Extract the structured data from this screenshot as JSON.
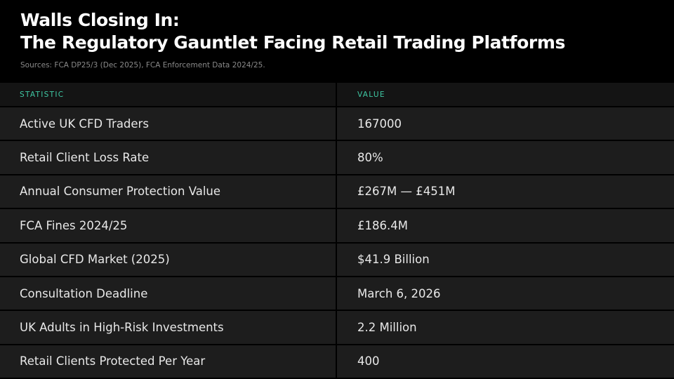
{
  "header": {
    "title": [
      "Walls Closing In:",
      "The Regulatory Gauntlet Facing Retail Trading Platforms"
    ],
    "sources": "Sources: FCA DP25/3 (Dec 2025), FCA Enforcement Data 2024/25."
  },
  "table": {
    "columns": [
      "STATISTIC",
      "VALUE"
    ],
    "rows": [
      [
        "Active UK CFD Traders",
        "167000"
      ],
      [
        "Retail Client Loss Rate",
        "80%"
      ],
      [
        "Annual Consumer Protection Value",
        "£267M — £451M"
      ],
      [
        "FCA Fines 2024/25",
        "£186.4M"
      ],
      [
        "Global CFD Market (2025)",
        "$41.9 Billion"
      ],
      [
        "Consultation Deadline",
        "March 6, 2026"
      ],
      [
        "UK Adults in High-Risk Investments",
        "2.2 Million"
      ],
      [
        "Retail Clients Protected Per Year",
        "400"
      ]
    ]
  }
}
